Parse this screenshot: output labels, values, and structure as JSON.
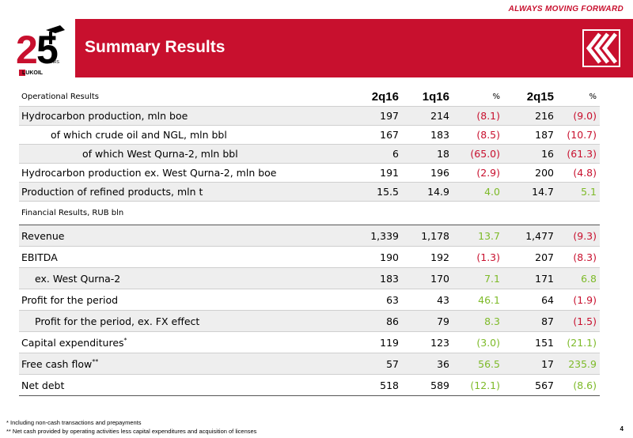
{
  "header": {
    "tagline": "ALWAYS MOVING FORWARD",
    "title": "Summary Results",
    "logo_text": "LUKOIL",
    "brand_color": "#c8102e"
  },
  "columns": {
    "label": "Operational Results",
    "c1": "2q16",
    "c2": "1q16",
    "c3": "%",
    "c4": "2q15",
    "c5": "%"
  },
  "operational_rows": [
    {
      "label": "Hydrocarbon production, mln boe",
      "v1": "197",
      "v2": "214",
      "p1": "(8.1)",
      "v3": "216",
      "p2": "(9.0)"
    },
    {
      "label": "of which crude oil and NGL, mln bbl",
      "v1": "167",
      "v2": "183",
      "p1": "(8.5)",
      "v3": "187",
      "p2": "(10.7)"
    },
    {
      "label": "of which West Qurna-2, mln bbl",
      "v1": "6",
      "v2": "18",
      "p1": "(65.0)",
      "v3": "16",
      "p2": "(61.3)"
    },
    {
      "label": "Hydrocarbon production ex. West Qurna-2, mln boe",
      "v1": "191",
      "v2": "196",
      "p1": "(2.9)",
      "v3": "200",
      "p2": "(4.8)"
    },
    {
      "label": "Production of refined products, mln t",
      "v1": "15.5",
      "v2": "14.9",
      "p1": "4.0",
      "v3": "14.7",
      "p2": "5.1"
    }
  ],
  "financial_section_label": "Financial Results, RUB bln",
  "financial_rows": [
    {
      "label": "Revenue",
      "v1": "1,339",
      "v2": "1,178",
      "p1": "13.7",
      "v3": "1,477",
      "p2": "(9.3)"
    },
    {
      "label": "EBITDA",
      "v1": "190",
      "v2": "192",
      "p1": "(1.3)",
      "v3": "207",
      "p2": "(8.3)"
    },
    {
      "label": "ex. West Qurna-2",
      "v1": "183",
      "v2": "170",
      "p1": "7.1",
      "v3": "171",
      "p2": "6.8"
    },
    {
      "label": "Profit for the period",
      "v1": "63",
      "v2": "43",
      "p1": "46.1",
      "v3": "64",
      "p2": "(1.9)"
    },
    {
      "label": "Profit for the period, ex. FX effect",
      "v1": "86",
      "v2": "79",
      "p1": "8.3",
      "v3": "87",
      "p2": "(1.5)"
    },
    {
      "label": "Capital expenditures",
      "sup": "*",
      "v1": "119",
      "v2": "123",
      "p1": "(3.0)",
      "v3": "151",
      "p2": "(21.1)"
    },
    {
      "label": "Free cash flow",
      "sup": "**",
      "v1": "57",
      "v2": "36",
      "p1": "56.5",
      "v3": "17",
      "p2": "235.9"
    },
    {
      "label": "Net debt",
      "v1": "518",
      "v2": "589",
      "p1": "(12.1)",
      "v3": "567",
      "p2": "(8.6)"
    }
  ],
  "footnotes": [
    "*    Including non-cash transactions and prepayments",
    "** Net cash provided by operating activities less capital expenditures and acquisition of licenses"
  ],
  "page_number": "4"
}
